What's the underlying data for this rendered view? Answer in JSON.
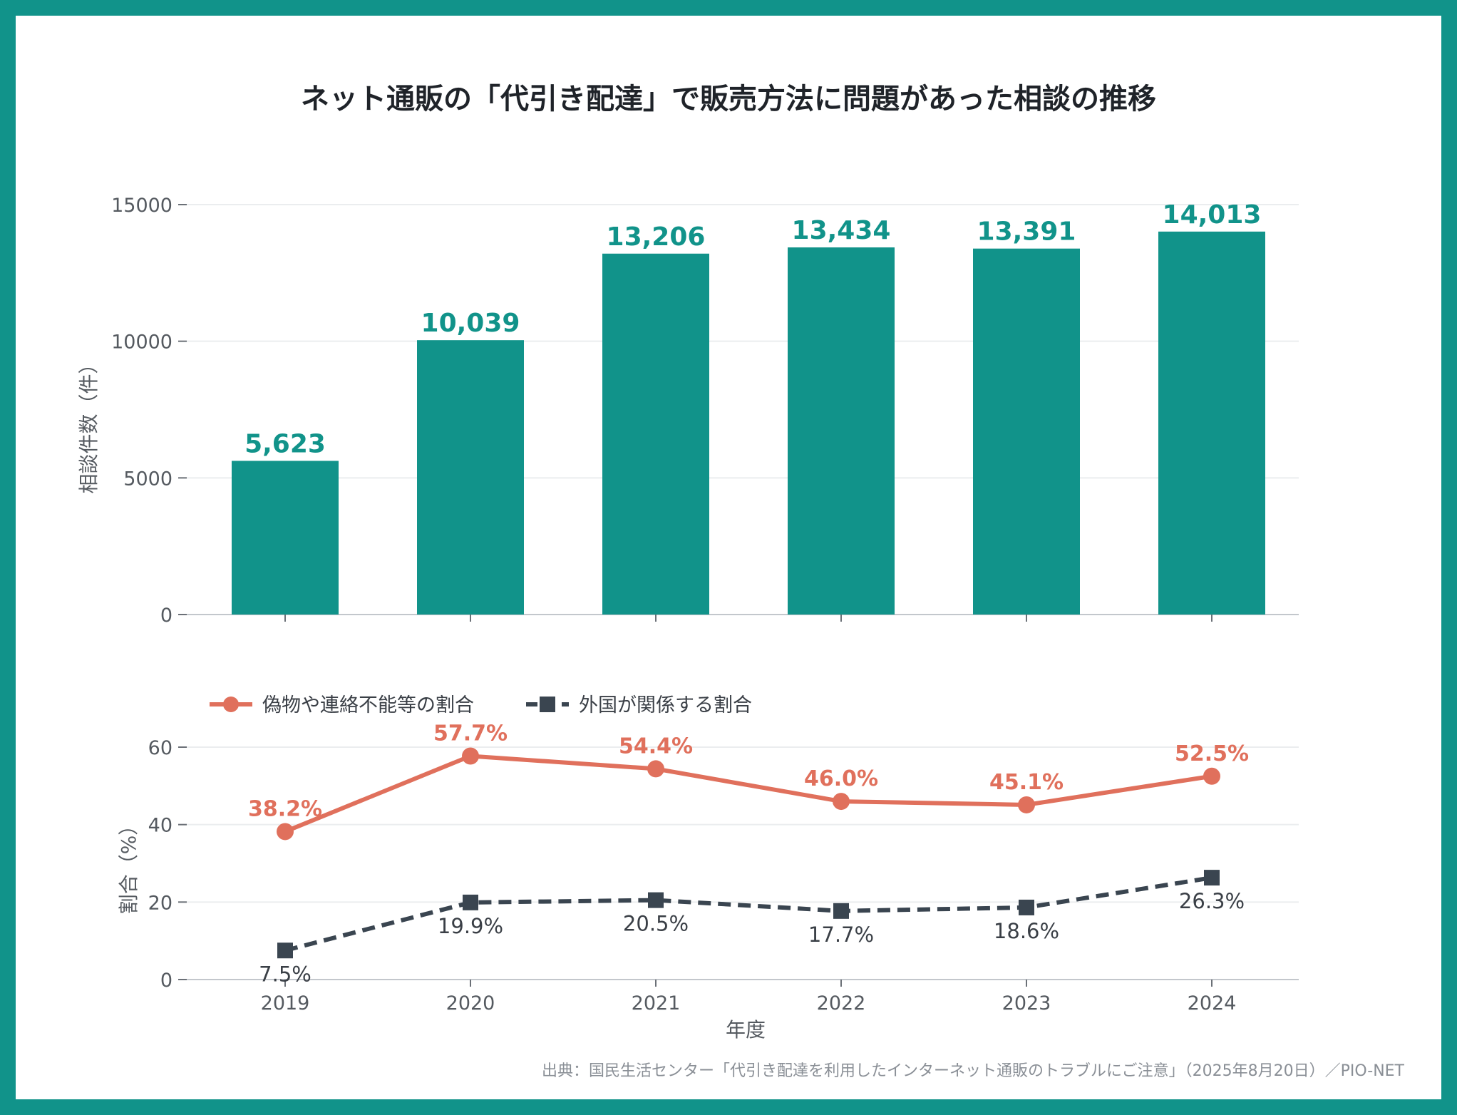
{
  "title": "ネット通販の「代引き配達」で販売方法に問題があった相談の推移",
  "source": "出典：国民生活センター「代引き配達を利用したインターネット通販のトラブルにご注意」（2025年8月20日）／PIO-NET",
  "colors": {
    "frame": "#11938a",
    "bars": "#11938a",
    "red_series": "#e0705c",
    "dark_series": "#3a4550"
  },
  "chart_data": [
    {
      "type": "bar",
      "categories": [
        "2019",
        "2020",
        "2021",
        "2022",
        "2023",
        "2024"
      ],
      "values": [
        5623,
        10039,
        13206,
        13434,
        13391,
        14013
      ],
      "value_labels": [
        "5,623",
        "10,039",
        "13,206",
        "13,434",
        "13,391",
        "14,013"
      ],
      "ylabel": "相談件数（件）",
      "yticks": [
        0,
        5000,
        10000,
        15000
      ],
      "ylim": [
        0,
        15000
      ],
      "grid": true
    },
    {
      "type": "line",
      "x": [
        "2019",
        "2020",
        "2021",
        "2022",
        "2023",
        "2024"
      ],
      "xlabel": "年度",
      "ylabel": "割合（%）",
      "yticks": [
        0,
        20,
        40,
        60
      ],
      "ylim": [
        0,
        60
      ],
      "grid": true,
      "legend_position": "top-left",
      "series": [
        {
          "name": "偽物や連絡不能等の割合",
          "values": [
            38.2,
            57.7,
            54.4,
            46.0,
            45.1,
            52.5
          ],
          "labels": [
            "38.2%",
            "57.7%",
            "54.4%",
            "46.0%",
            "45.1%",
            "52.5%"
          ],
          "style": "solid-circle"
        },
        {
          "name": "外国が関係する割合",
          "values": [
            7.5,
            19.9,
            20.5,
            17.7,
            18.6,
            26.3
          ],
          "labels": [
            "7.5%",
            "19.9%",
            "20.5%",
            "17.7%",
            "18.6%",
            "26.3%"
          ],
          "style": "dashed-square"
        }
      ]
    }
  ]
}
